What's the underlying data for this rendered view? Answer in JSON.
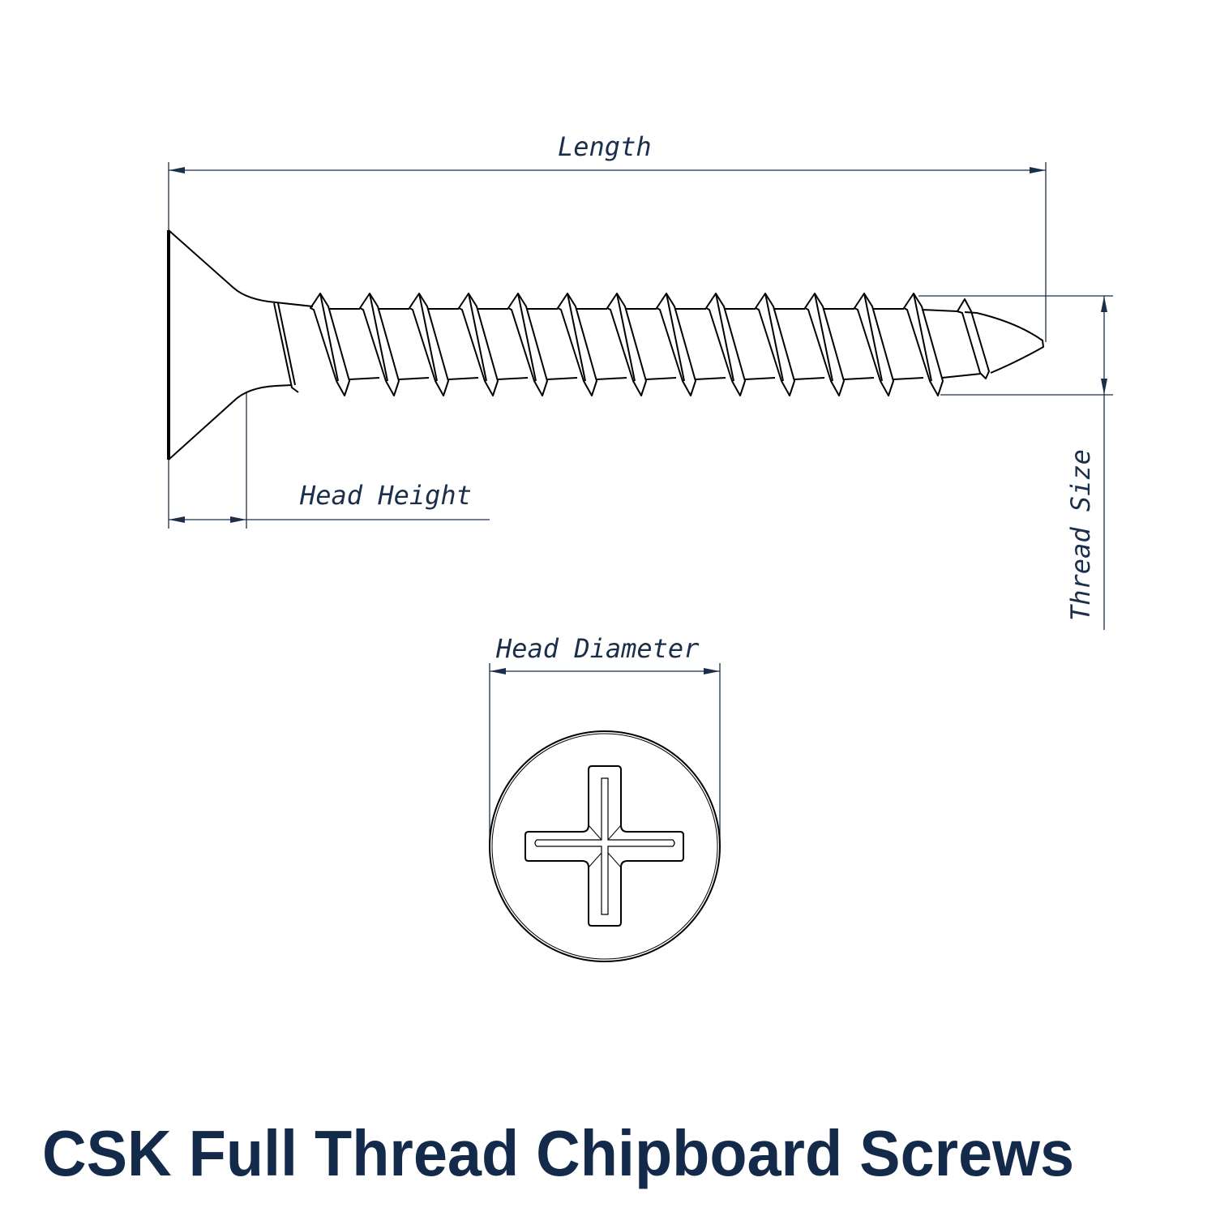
{
  "labels": {
    "length": "Length",
    "head_height": "Head Height",
    "thread_size": "Thread Size",
    "head_diameter": "Head Diameter"
  },
  "title": "CSK Full Thread Chipboard Screws",
  "colors": {
    "dimension": "#1b2f4b",
    "title": "#142a4a",
    "outline": "#000000"
  },
  "drive_type": "phillips-cross-recess"
}
